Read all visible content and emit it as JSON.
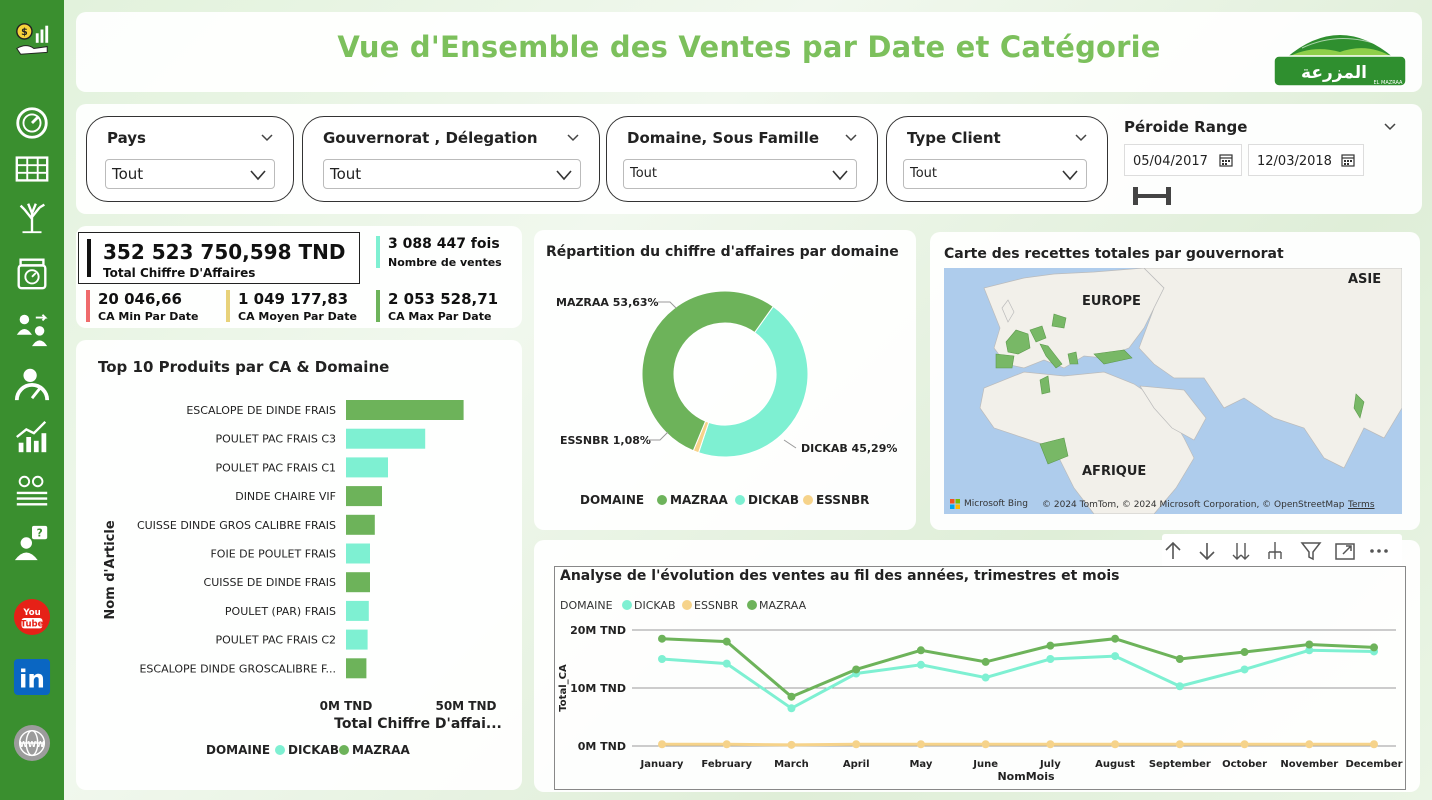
{
  "header": {
    "title": "Vue d'Ensemble des Ventes par Date et Catégorie",
    "logo_text": "المزرعة",
    "logo_subtext": "EL MAZRAA"
  },
  "sidebar": {
    "items": [
      {
        "icon": "money-growth-icon"
      },
      {
        "icon": "speedometer-icon"
      },
      {
        "icon": "table-icon"
      },
      {
        "icon": "tree-icon"
      },
      {
        "icon": "scale-icon"
      },
      {
        "icon": "team-transfer-icon"
      },
      {
        "icon": "gauge-person-icon"
      },
      {
        "icon": "trend-chart-icon"
      },
      {
        "icon": "settings-list-icon"
      },
      {
        "icon": "help-person-icon"
      },
      {
        "icon": "youtube-icon",
        "label": "You Tube"
      },
      {
        "icon": "linkedin-icon",
        "label": "in"
      },
      {
        "icon": "globe-icon",
        "label": "WWW"
      }
    ]
  },
  "filters": {
    "pays": {
      "label": "Pays",
      "value": "Tout"
    },
    "gouvernorat": {
      "label": "Gouvernorat , Délegation",
      "value": "Tout"
    },
    "domaine": {
      "label": "Domaine, Sous Famille",
      "value": "Tout"
    },
    "type_client": {
      "label": "Type Client",
      "value": "Tout"
    },
    "periode": {
      "label": "Péroide Range",
      "start": "05/04/2017",
      "end": "12/03/2018"
    }
  },
  "kpis": {
    "total_ca": {
      "value": "352 523 750,598 TND",
      "label": "Total Chiffre D'Affaires"
    },
    "nb_ventes": {
      "value": "3 088 447 fois",
      "label": "Nombre de ventes"
    },
    "ca_min": {
      "value": "20 046,66",
      "label": "CA Min Par Date"
    },
    "ca_moyen": {
      "value": "1 049 177,83",
      "label": "CA Moyen Par Date"
    },
    "ca_max": {
      "value": "2 053 528,71",
      "label": "CA Max Par Date"
    }
  },
  "colors": {
    "mazraa": "#6db35a",
    "dickab": "#7ef0d2",
    "essnbr": "#f6d38a",
    "accent": "#7cc05c",
    "sidebar": "#3a8f2f"
  },
  "top10": {
    "title": "Top 10 Produits par CA & Domaine",
    "chart_data": {
      "type": "bar",
      "orientation": "horizontal",
      "categories": [
        "ESCALOPE DE DINDE FRAIS",
        "POULET PAC FRAIS C3",
        "POULET PAC FRAIS C1",
        "DINDE CHAIRE VIF",
        "CUISSE DINDE GROS CALIBRE FRAIS",
        "FOIE DE POULET FRAIS",
        "CUISSE DE DINDE FRAIS",
        "POULET (PAR) FRAIS",
        "POULET PAC FRAIS C2",
        "ESCALOPE DINDE GROSCALIBRE F..."
      ],
      "values": [
        49,
        33,
        17.5,
        15,
        12,
        10,
        10,
        9.5,
        9,
        8.5
      ],
      "domains": [
        "MAZRAA",
        "DICKAB",
        "DICKAB",
        "MAZRAA",
        "MAZRAA",
        "DICKAB",
        "MAZRAA",
        "DICKAB",
        "DICKAB",
        "MAZRAA"
      ],
      "xlabel": "Total Chiffre D'affai...",
      "ylabel": "Nom d'Article",
      "xticks": [
        "0M TND",
        "50M TND"
      ],
      "xlim": [
        0,
        50
      ],
      "legend_title": "DOMAINE",
      "legend": [
        "DICKAB",
        "MAZRAA"
      ]
    }
  },
  "donut": {
    "title": "Répartition du chiffre d'affaires par domaine",
    "chart_data": {
      "type": "pie",
      "labels": [
        "MAZRAA",
        "DICKAB",
        "ESSNBR"
      ],
      "values": [
        53.63,
        45.29,
        1.08
      ],
      "data_labels": [
        "MAZRAA 53,63%",
        "DICKAB 45,29%",
        "ESSNBR 1,08%"
      ],
      "legend_title": "DOMAINE",
      "legend": [
        "MAZRAA",
        "DICKAB",
        "ESSNBR"
      ]
    }
  },
  "map": {
    "title": "Carte des recettes totales par gouvernorat",
    "labels": [
      "EUROPE",
      "ASIE",
      "AFRIQUE"
    ],
    "attribution_logo": "Microsoft Bing",
    "attribution": "© 2024 TomTom, © 2024 Microsoft Corporation, © OpenStreetMap",
    "terms": "Terms"
  },
  "line": {
    "title": "Analyse de l'évolution des ventes au fil des années, trimestres et mois",
    "chart_data": {
      "type": "line",
      "categories": [
        "January",
        "February",
        "March",
        "April",
        "May",
        "June",
        "July",
        "August",
        "September",
        "October",
        "November",
        "December"
      ],
      "series": [
        {
          "name": "DICKAB",
          "values": [
            15,
            14.2,
            6.5,
            12.5,
            14,
            11.8,
            15,
            15.5,
            10.3,
            13.2,
            16.5,
            16.3
          ]
        },
        {
          "name": "ESSNBR",
          "values": [
            0.3,
            0.3,
            0.2,
            0.3,
            0.3,
            0.3,
            0.3,
            0.3,
            0.3,
            0.3,
            0.3,
            0.3
          ]
        },
        {
          "name": "MAZRAA",
          "values": [
            18.5,
            18,
            8.5,
            13.2,
            16.5,
            14.5,
            17.3,
            18.5,
            15,
            16.2,
            17.5,
            17
          ]
        }
      ],
      "xlabel": "NomMois",
      "ylabel": "Total_CA",
      "yticks": [
        "0M TND",
        "10M TND",
        "20M TND"
      ],
      "ylim": [
        0,
        20
      ],
      "grid": true,
      "legend_title": "DOMAINE",
      "legend": [
        "DICKAB",
        "ESSNBR",
        "MAZRAA"
      ]
    }
  }
}
